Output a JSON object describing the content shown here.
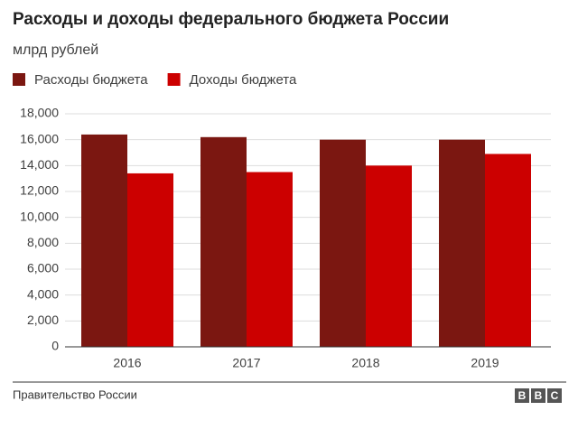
{
  "chart_data": {
    "type": "bar",
    "title": "Расходы и доходы федерального бюджета России",
    "subtitle": "млрд рублей",
    "categories": [
      "2016",
      "2017",
      "2018",
      "2019"
    ],
    "series": [
      {
        "name": "Расходы бюджета",
        "color": "#7b1711",
        "values": [
          16400,
          16200,
          16000,
          16000
        ]
      },
      {
        "name": "Доходы бюджета",
        "color": "#cc0000",
        "values": [
          13400,
          13500,
          14000,
          14900
        ]
      }
    ],
    "ylim": [
      0,
      18000
    ],
    "yticks": [
      0,
      {
        "value": 2000,
        "label": "2,000"
      },
      {
        "value": 4000,
        "label": "4,000"
      },
      {
        "value": 6000,
        "label": "6,000"
      },
      {
        "value": 8000,
        "label": "8,000"
      },
      {
        "value": 10000,
        "label": "10,000"
      },
      {
        "value": 12000,
        "label": "12,000"
      },
      {
        "value": 14000,
        "label": "14,000"
      },
      {
        "value": 16000,
        "label": "16,000"
      },
      {
        "value": 18000,
        "label": "18,000"
      }
    ],
    "grid": true,
    "source": "Правительство России",
    "logo": [
      "B",
      "B",
      "C"
    ]
  }
}
